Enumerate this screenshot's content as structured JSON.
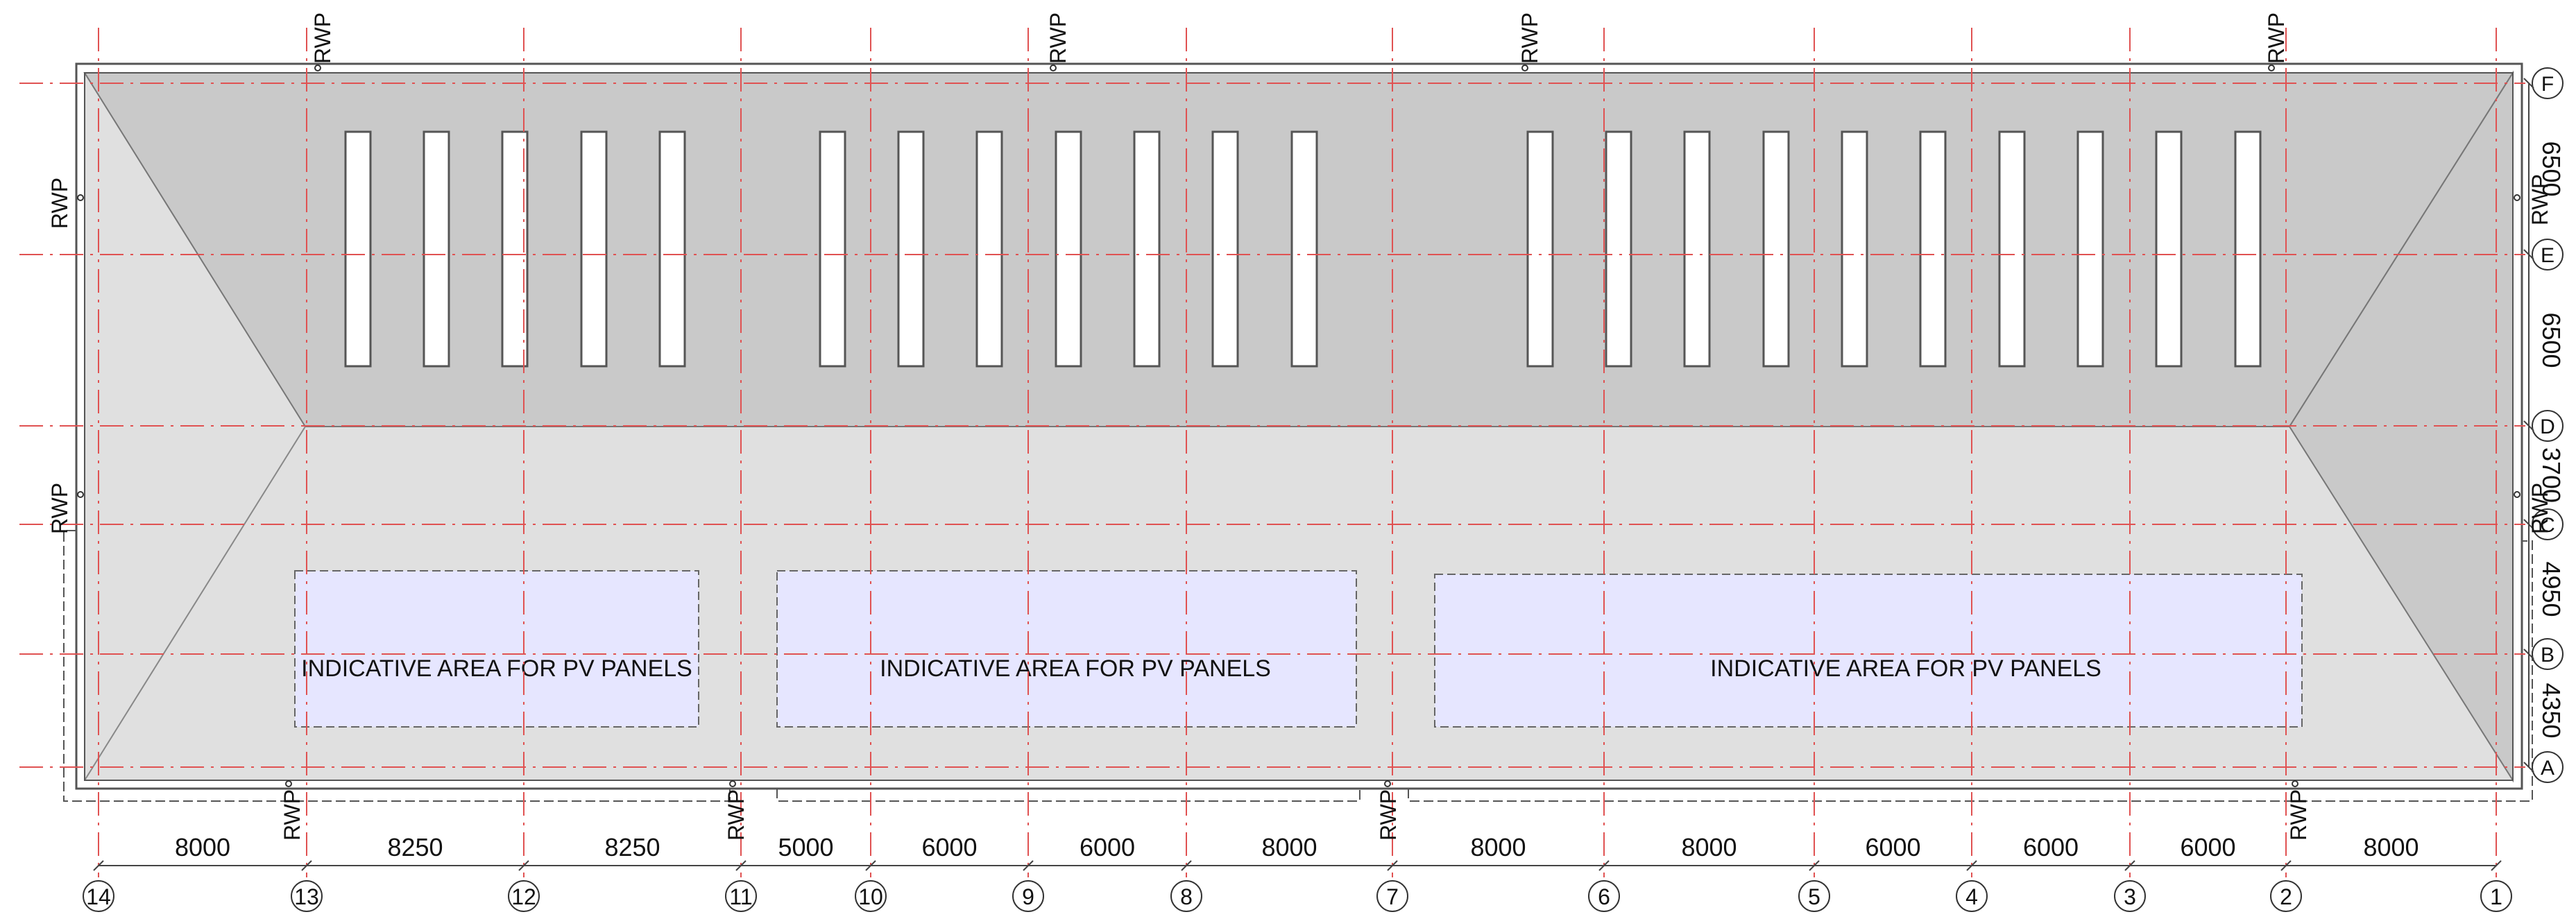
{
  "drawing": {
    "rwp_label": "RWP",
    "pv_area_label": "INDICATIVE AREA FOR PV PANELS",
    "colors": {
      "gridline": "#e05252",
      "hip_roof": "#c9c9c9",
      "flat_roof": "#e0e0e0",
      "pv_area": "#e6e6ff",
      "rooflight": "#ffffff",
      "outline": "#555555"
    }
  },
  "column_grid": [
    {
      "label": "14",
      "span_to_next": "8000"
    },
    {
      "label": "13",
      "span_to_next": "8250"
    },
    {
      "label": "12",
      "span_to_next": "8250"
    },
    {
      "label": "11",
      "span_to_next": "5000"
    },
    {
      "label": "10",
      "span_to_next": "6000"
    },
    {
      "label": "9",
      "span_to_next": "6000"
    },
    {
      "label": "8",
      "span_to_next": "8000"
    },
    {
      "label": "7",
      "span_to_next": "8000"
    },
    {
      "label": "6",
      "span_to_next": "8000"
    },
    {
      "label": "5",
      "span_to_next": "6000"
    },
    {
      "label": "4",
      "span_to_next": "6000"
    },
    {
      "label": "3",
      "span_to_next": "6000"
    },
    {
      "label": "2",
      "span_to_next": "8000"
    },
    {
      "label": "1",
      "span_to_next": ""
    }
  ],
  "row_grid": [
    {
      "label": "F",
      "span_to_next": "6500"
    },
    {
      "label": "E",
      "span_to_next": "6500"
    },
    {
      "label": "D",
      "span_to_next": "3700"
    },
    {
      "label": "C",
      "span_to_next": "4950"
    },
    {
      "label": "B",
      "span_to_next": "4350"
    },
    {
      "label": "A",
      "span_to_next": ""
    }
  ]
}
